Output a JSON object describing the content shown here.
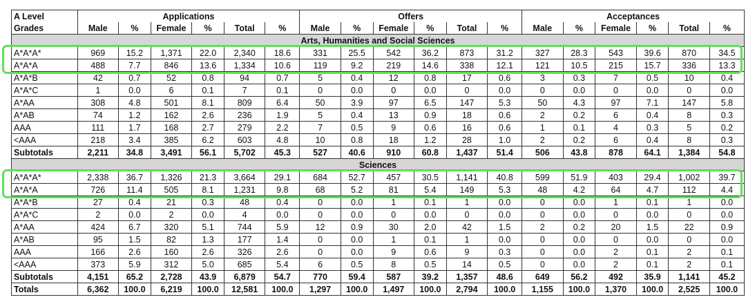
{
  "groups": [
    "Applications",
    "Offers",
    "Acceptances"
  ],
  "grade_header_1": "A Level",
  "grade_header_2": "Grades",
  "sub_headers": [
    "Male",
    "%",
    "Female",
    "%",
    "Total",
    "%"
  ],
  "sections": [
    {
      "title": "Arts, Humanities and Social Sciences",
      "rows": [
        {
          "grade": "A*A*A*",
          "cells": [
            "969",
            "15.2",
            "1,371",
            "22.0",
            "2,340",
            "18.6",
            "331",
            "25.5",
            "542",
            "36.2",
            "873",
            "31.2",
            "327",
            "28.3",
            "543",
            "39.6",
            "870",
            "34.5"
          ]
        },
        {
          "grade": "A*A*A",
          "cells": [
            "488",
            "7.7",
            "846",
            "13.6",
            "1,334",
            "10.6",
            "119",
            "9.2",
            "219",
            "14.6",
            "338",
            "12.1",
            "121",
            "10.5",
            "215",
            "15.7",
            "336",
            "13.3"
          ]
        },
        {
          "grade": "A*A*B",
          "cells": [
            "42",
            "0.7",
            "52",
            "0.8",
            "94",
            "0.7",
            "5",
            "0.4",
            "12",
            "0.8",
            "17",
            "0.6",
            "3",
            "0.3",
            "7",
            "0.5",
            "10",
            "0.4"
          ]
        },
        {
          "grade": "A*A*C",
          "cells": [
            "1",
            "0.0",
            "6",
            "0.1",
            "7",
            "0.1",
            "0",
            "0.0",
            "0",
            "0.0",
            "0",
            "0.0",
            "0",
            "0.0",
            "0",
            "0.0",
            "0",
            "0.0"
          ]
        },
        {
          "grade": "A*AA",
          "cells": [
            "308",
            "4.8",
            "501",
            "8.1",
            "809",
            "6.4",
            "50",
            "3.9",
            "97",
            "6.5",
            "147",
            "5.3",
            "50",
            "4.3",
            "97",
            "7.1",
            "147",
            "5.8"
          ]
        },
        {
          "grade": "A*AB",
          "cells": [
            "74",
            "1.2",
            "162",
            "2.6",
            "236",
            "1.9",
            "5",
            "0.4",
            "13",
            "0.9",
            "18",
            "0.6",
            "2",
            "0.2",
            "6",
            "0.4",
            "8",
            "0.3"
          ]
        },
        {
          "grade": "AAA",
          "cells": [
            "111",
            "1.7",
            "168",
            "2.7",
            "279",
            "2.2",
            "7",
            "0.5",
            "9",
            "0.6",
            "16",
            "0.6",
            "1",
            "0.1",
            "4",
            "0.3",
            "5",
            "0.2"
          ]
        },
        {
          "grade": "<AAA",
          "cells": [
            "218",
            "3.4",
            "385",
            "6.2",
            "603",
            "4.8",
            "10",
            "0.8",
            "18",
            "1.2",
            "28",
            "1.0",
            "2",
            "0.2",
            "6",
            "0.4",
            "8",
            "0.3"
          ]
        }
      ],
      "subtotal": {
        "label": "Subtotals",
        "cells": [
          "2,211",
          "34.8",
          "3,491",
          "56.1",
          "5,702",
          "45.3",
          "527",
          "40.6",
          "910",
          "60.8",
          "1,437",
          "51.4",
          "506",
          "43.8",
          "878",
          "64.1",
          "1,384",
          "54.8"
        ]
      }
    },
    {
      "title": "Sciences",
      "rows": [
        {
          "grade": "A*A*A*",
          "cells": [
            "2,338",
            "36.7",
            "1,326",
            "21.3",
            "3,664",
            "29.1",
            "684",
            "52.7",
            "457",
            "30.5",
            "1,141",
            "40.8",
            "599",
            "51.9",
            "403",
            "29.4",
            "1,002",
            "39.7"
          ]
        },
        {
          "grade": "A*A*A",
          "cells": [
            "726",
            "11.4",
            "505",
            "8.1",
            "1,231",
            "9.8",
            "68",
            "5.2",
            "81",
            "5.4",
            "149",
            "5.3",
            "48",
            "4.2",
            "64",
            "4.7",
            "112",
            "4.4"
          ]
        },
        {
          "grade": "A*A*B",
          "cells": [
            "27",
            "0.4",
            "21",
            "0.3",
            "48",
            "0.4",
            "0",
            "0.0",
            "1",
            "0.1",
            "1",
            "0.0",
            "0",
            "0.0",
            "1",
            "0.1",
            "1",
            "0.0"
          ]
        },
        {
          "grade": "A*A*C",
          "cells": [
            "2",
            "0.0",
            "2",
            "0.0",
            "4",
            "0.0",
            "0",
            "0.0",
            "0",
            "0.0",
            "0",
            "0.0",
            "0",
            "0.0",
            "0",
            "0.0",
            "0",
            "0.0"
          ]
        },
        {
          "grade": "A*AA",
          "cells": [
            "424",
            "6.7",
            "320",
            "5.1",
            "744",
            "5.9",
            "12",
            "0.9",
            "30",
            "2.0",
            "42",
            "1.5",
            "2",
            "0.2",
            "20",
            "1.5",
            "22",
            "0.9"
          ]
        },
        {
          "grade": "A*AB",
          "cells": [
            "95",
            "1.5",
            "82",
            "1.3",
            "177",
            "1.4",
            "0",
            "0.0",
            "1",
            "0.1",
            "1",
            "0.0",
            "0",
            "0.0",
            "0",
            "0.0",
            "0",
            "0.0"
          ]
        },
        {
          "grade": "AAA",
          "cells": [
            "166",
            "2.6",
            "160",
            "2.6",
            "326",
            "2.6",
            "0",
            "0.0",
            "9",
            "0.6",
            "9",
            "0.3",
            "0",
            "0.0",
            "2",
            "0.1",
            "2",
            "0.1"
          ]
        },
        {
          "grade": "<AAA",
          "cells": [
            "373",
            "5.9",
            "312",
            "5.0",
            "685",
            "5.4",
            "6",
            "0.5",
            "8",
            "0.5",
            "14",
            "0.5",
            "0",
            "0.0",
            "2",
            "0.1",
            "2",
            "0.1"
          ]
        }
      ],
      "subtotal": {
        "label": "Subtotals",
        "cells": [
          "4,151",
          "65.2",
          "2,728",
          "43.9",
          "6,879",
          "54.7",
          "770",
          "59.4",
          "587",
          "39.2",
          "1,357",
          "48.6",
          "649",
          "56.2",
          "492",
          "35.9",
          "1,141",
          "45.2"
        ]
      }
    }
  ],
  "totals": {
    "label": "Totals",
    "cells": [
      "6,362",
      "100.0",
      "6,219",
      "100.0",
      "12,581",
      "100.0",
      "1,297",
      "100.0",
      "1,497",
      "100.0",
      "2,794",
      "100.0",
      "1,155",
      "100.0",
      "1,370",
      "100.0",
      "2,525",
      "100.0"
    ]
  },
  "highlight_color": "#5fe05a",
  "section_band_color": "#d6d6d6"
}
